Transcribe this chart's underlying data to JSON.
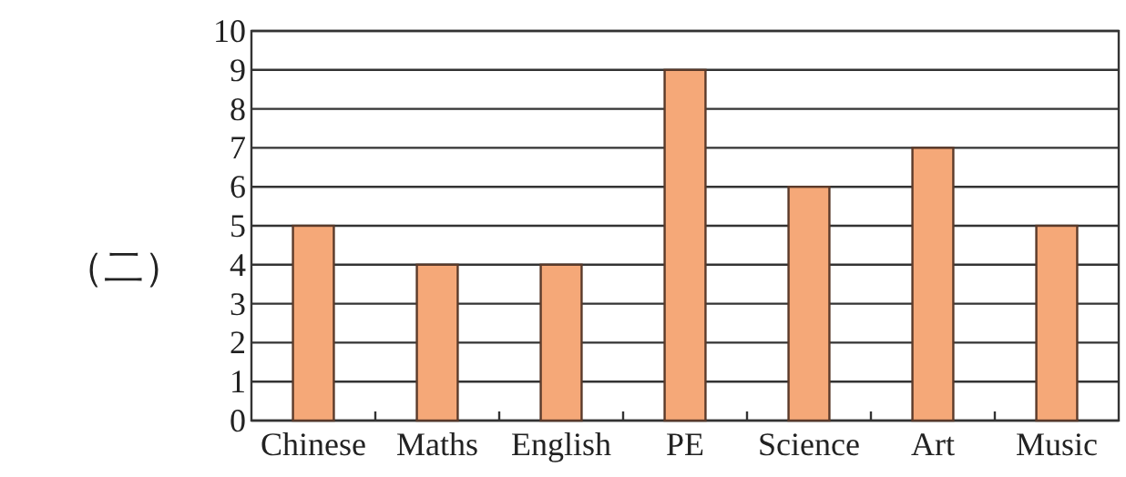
{
  "chart_data": {
    "type": "bar",
    "ylabel": "（二）",
    "categories": [
      "Chinese",
      "Maths",
      "English",
      "PE",
      "Science",
      "Art",
      "Music"
    ],
    "values": [
      5,
      4,
      4,
      9,
      6,
      7,
      5
    ],
    "color": "#f5a878",
    "ylim": [
      0,
      10
    ],
    "yticks": [
      0,
      1,
      2,
      3,
      4,
      5,
      6,
      7,
      8,
      9,
      10
    ],
    "grid": "y"
  }
}
